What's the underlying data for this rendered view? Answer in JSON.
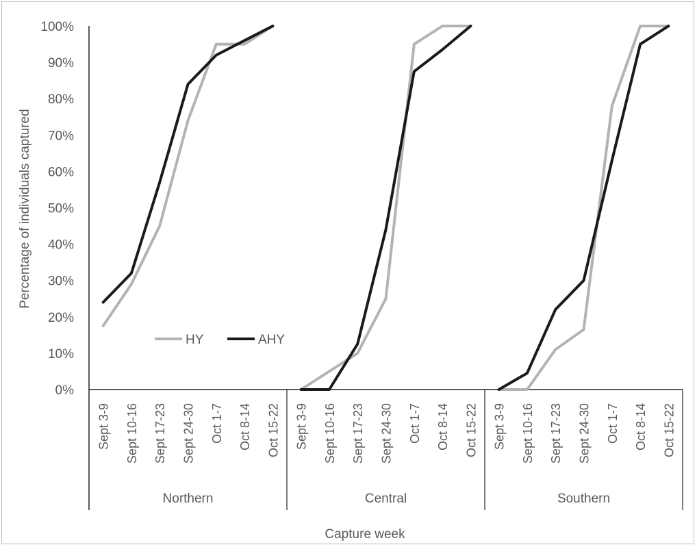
{
  "chart_data": {
    "type": "line",
    "ylabel": "Percentage of individuals captured",
    "xlabel": "Capture week",
    "ylim": [
      0,
      100
    ],
    "y_ticks": [
      "0%",
      "10%",
      "20%",
      "30%",
      "40%",
      "50%",
      "60%",
      "70%",
      "80%",
      "90%",
      "100%"
    ],
    "weeks": [
      "Sept 3-9",
      "Sept 10-16",
      "Sept 17-23",
      "Sept 24-30",
      "Oct 1-7",
      "Oct 8-14",
      "Oct 15-22"
    ],
    "groups": [
      "Northern",
      "Central",
      "Southern"
    ],
    "legend_position": "inside-left",
    "series": [
      {
        "name": "HY",
        "color": "#b3b3b3",
        "values": [
          [
            17.5,
            29,
            45,
            74,
            95,
            95,
            100
          ],
          [
            0,
            5,
            10,
            25,
            95,
            100,
            100
          ],
          [
            0,
            0,
            11,
            16.5,
            78,
            100,
            100
          ]
        ]
      },
      {
        "name": "AHY",
        "color": "#1a1a1a",
        "values": [
          [
            24,
            32,
            57,
            84,
            92,
            96,
            100
          ],
          [
            0,
            0,
            12.5,
            44,
            87.5,
            93.5,
            100
          ],
          [
            0,
            4.5,
            22,
            30,
            63,
            95,
            100
          ]
        ]
      }
    ]
  }
}
